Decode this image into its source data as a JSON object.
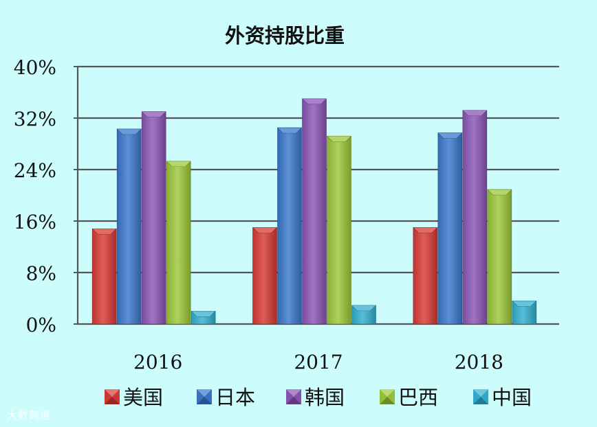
{
  "chart_data": {
    "type": "bar",
    "title": "外资持股比重",
    "categories": [
      "2016",
      "2017",
      "2018"
    ],
    "series": [
      {
        "name": "美国",
        "color": "#d83a35",
        "values": [
          14.8,
          15.0,
          15.0
        ]
      },
      {
        "name": "日本",
        "color": "#3a78cc",
        "values": [
          30.3,
          30.5,
          29.7
        ]
      },
      {
        "name": "韩国",
        "color": "#8b55b5",
        "values": [
          33.0,
          35.0,
          33.2
        ]
      },
      {
        "name": "巴西",
        "color": "#9cc83a",
        "values": [
          25.3,
          29.2,
          20.9
        ]
      },
      {
        "name": "中国",
        "color": "#32b0d0",
        "values": [
          2.0,
          2.9,
          3.6
        ]
      }
    ],
    "ylim": [
      0,
      40
    ],
    "yticks": [
      0,
      8,
      16,
      24,
      32,
      40
    ],
    "ytick_labels": [
      "0%",
      "8%",
      "16%",
      "24%",
      "32%",
      "40%"
    ],
    "grid": true,
    "legend_position": "bottom",
    "xlabel": "",
    "ylabel": ""
  },
  "watermark": "大数跨境"
}
